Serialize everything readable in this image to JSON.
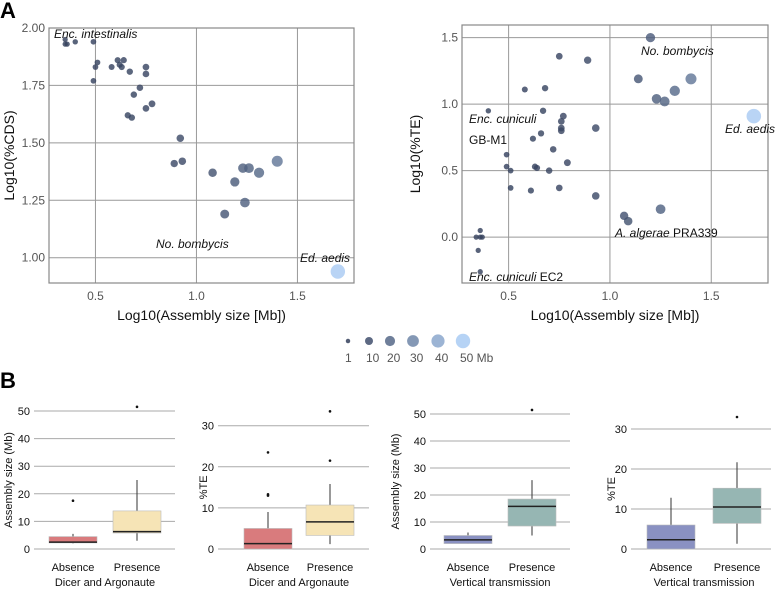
{
  "panel_labels": {
    "a": "A",
    "b": "B"
  },
  "colors": {
    "small_point": "#34405c",
    "large_point": "#a9cbf3",
    "dicer_absence": "#d97b7d",
    "dicer_presence": "#f6e4b6",
    "vertical_absence": "#8a91c2",
    "vertical_presence": "#96b6b3"
  },
  "chart_data": [
    {
      "type": "scatter",
      "xlabel": "Log10(Assembly size [Mb])",
      "ylabel": "Log10(%CDS)",
      "xlim": [
        0.27,
        1.78
      ],
      "ylim": [
        0.89,
        2.0
      ],
      "xticks": [
        "0.5",
        "1.0",
        "1.5"
      ],
      "xtick_values": [
        0.5,
        1.0,
        1.5
      ],
      "yticks": [
        "1.00",
        "1.25",
        "1.50",
        "1.75",
        "2.00"
      ],
      "ytick_values": [
        1.0,
        1.25,
        1.5,
        1.75,
        2.0
      ],
      "grid": true,
      "annotations": [
        {
          "italic": "Enc. intestinalis",
          "plain": ""
        },
        {
          "italic": "No. bombycis",
          "plain": ""
        },
        {
          "italic": "Ed. aedis",
          "plain": ""
        }
      ],
      "points": [
        [
          0.35,
          1.95
        ],
        [
          0.35,
          1.93
        ],
        [
          0.36,
          1.93
        ],
        [
          0.4,
          1.94
        ],
        [
          0.49,
          1.94
        ],
        [
          0.51,
          1.85
        ],
        [
          0.5,
          1.83
        ],
        [
          0.49,
          1.77
        ],
        [
          0.58,
          1.83
        ],
        [
          0.61,
          1.86
        ],
        [
          0.62,
          1.84
        ],
        [
          0.63,
          1.83
        ],
        [
          0.64,
          1.86
        ],
        [
          0.67,
          1.81
        ],
        [
          0.75,
          1.83
        ],
        [
          0.75,
          1.8
        ],
        [
          0.72,
          1.74
        ],
        [
          0.69,
          1.71
        ],
        [
          0.66,
          1.62
        ],
        [
          0.68,
          1.61
        ],
        [
          0.75,
          1.65
        ],
        [
          0.78,
          1.67
        ],
        [
          0.92,
          1.52
        ],
        [
          0.93,
          1.42
        ],
        [
          0.89,
          1.41
        ],
        [
          1.08,
          1.37
        ],
        [
          1.14,
          1.19
        ],
        [
          1.19,
          1.33
        ],
        [
          1.23,
          1.39
        ],
        [
          1.26,
          1.39
        ],
        [
          1.24,
          1.24
        ],
        [
          1.31,
          1.37
        ],
        [
          1.4,
          1.42
        ],
        [
          1.7,
          0.94
        ]
      ]
    },
    {
      "type": "scatter",
      "xlabel": "Log10(Assembly size [Mb])",
      "ylabel": "Log10(%TE)",
      "xlim": [
        0.27,
        1.78
      ],
      "ylim": [
        -0.345,
        1.595
      ],
      "xticks": [
        "0.5",
        "1.0",
        "1.5"
      ],
      "xtick_values": [
        0.5,
        1.0,
        1.5
      ],
      "yticks": [
        "0.0",
        "0.5",
        "1.0",
        "1.5"
      ],
      "ytick_values": [
        0.0,
        0.5,
        1.0,
        1.5
      ],
      "grid": true,
      "annotations": [
        {
          "italic": "No. bombycis",
          "plain": ""
        },
        {
          "italic": "Enc. cuniculi",
          "plain": ""
        },
        {
          "italic": "",
          "plain": "GB-M1"
        },
        {
          "italic": "Ed. aedis",
          "plain": ""
        },
        {
          "italic": "A. algerae",
          "plain": " PRA339"
        },
        {
          "italic": "Enc. cuniculi",
          "plain": " EC2"
        }
      ],
      "points": [
        [
          1.2,
          1.5
        ],
        [
          0.75,
          1.36
        ],
        [
          0.89,
          1.33
        ],
        [
          1.14,
          1.19
        ],
        [
          1.4,
          1.19
        ],
        [
          1.32,
          1.1
        ],
        [
          1.23,
          1.04
        ],
        [
          1.27,
          1.02
        ],
        [
          1.71,
          0.91
        ],
        [
          0.58,
          1.11
        ],
        [
          0.68,
          1.12
        ],
        [
          0.4,
          0.95
        ],
        [
          0.67,
          0.95
        ],
        [
          0.77,
          0.91
        ],
        [
          0.76,
          0.87
        ],
        [
          0.76,
          0.82
        ],
        [
          0.76,
          0.8
        ],
        [
          0.93,
          0.82
        ],
        [
          0.62,
          0.74
        ],
        [
          0.66,
          0.78
        ],
        [
          0.72,
          0.66
        ],
        [
          0.49,
          0.62
        ],
        [
          0.49,
          0.53
        ],
        [
          0.51,
          0.5
        ],
        [
          0.63,
          0.53
        ],
        [
          0.64,
          0.52
        ],
        [
          0.7,
          0.5
        ],
        [
          0.79,
          0.56
        ],
        [
          0.51,
          0.37
        ],
        [
          0.61,
          0.35
        ],
        [
          0.75,
          0.37
        ],
        [
          0.93,
          0.31
        ],
        [
          1.07,
          0.16
        ],
        [
          1.09,
          0.12
        ],
        [
          1.25,
          0.21
        ],
        [
          0.36,
          0.05
        ],
        [
          0.34,
          0.0
        ],
        [
          0.36,
          0.0
        ],
        [
          0.37,
          0.0
        ],
        [
          0.35,
          -0.1
        ],
        [
          0.36,
          -0.26
        ]
      ]
    },
    {
      "type": "legend",
      "title": "",
      "sizes": [
        1,
        10,
        20,
        30,
        40,
        50
      ],
      "labels": [
        "1",
        "10",
        "20",
        "30",
        "40",
        "50 Mb"
      ]
    },
    {
      "type": "box",
      "ylabel": "Assembly size (Mb)",
      "xlabel": "Dicer and Argonaute",
      "ylim": [
        0,
        50
      ],
      "yticks": [
        0,
        10,
        20,
        30,
        40,
        50
      ],
      "categories": [
        "Absence",
        "Presence"
      ],
      "boxes": [
        {
          "q1": 2.2,
          "median": 2.5,
          "q3": 4.5,
          "whisker_low": 2.0,
          "whisker_high": 5.5,
          "outliers": [
            17.5
          ],
          "color_key": "dicer_absence"
        },
        {
          "q1": 5.8,
          "median": 6.3,
          "q3": 13.8,
          "whisker_low": 3.0,
          "whisker_high": 25.0,
          "outliers": [
            51.5
          ],
          "color_key": "dicer_presence"
        }
      ]
    },
    {
      "type": "box",
      "ylabel": "%TE",
      "xlabel": "Dicer and Argonaute",
      "ylim": [
        0,
        30
      ],
      "yticks": [
        0,
        10,
        20,
        30
      ],
      "categories": [
        "Absence",
        "Presence"
      ],
      "boxes": [
        {
          "q1": 0.0,
          "median": 1.3,
          "q3": 5.0,
          "whisker_low": 0.0,
          "whisker_high": 9.0,
          "outliers": [
            13.0,
            13.3,
            23.5
          ],
          "color_key": "dicer_absence"
        },
        {
          "q1": 3.3,
          "median": 6.6,
          "q3": 10.7,
          "whisker_low": 1.2,
          "whisker_high": 15.8,
          "outliers": [
            21.5,
            33.5
          ],
          "color_key": "dicer_presence"
        }
      ]
    },
    {
      "type": "box",
      "ylabel": "Assembly size (Mb)",
      "xlabel": "Vertical transmission",
      "ylim": [
        0,
        50
      ],
      "yticks": [
        0,
        10,
        20,
        30,
        40,
        50
      ],
      "categories": [
        "Absence",
        "Presence"
      ],
      "boxes": [
        {
          "q1": 2.0,
          "median": 3.4,
          "q3": 5.0,
          "whisker_low": 2.0,
          "whisker_high": 6.1,
          "outliers": [],
          "color_key": "vertical_absence"
        },
        {
          "q1": 8.5,
          "median": 15.8,
          "q3": 18.5,
          "whisker_low": 5.0,
          "whisker_high": 25.5,
          "outliers": [
            51.5
          ],
          "color_key": "vertical_presence"
        }
      ]
    },
    {
      "type": "box",
      "ylabel": "%TE",
      "xlabel": "Vertical transmission",
      "ylim": [
        0,
        30
      ],
      "yticks": [
        0,
        10,
        20,
        30
      ],
      "categories": [
        "Absence",
        "Presence"
      ],
      "boxes": [
        {
          "q1": 0.0,
          "median": 2.3,
          "q3": 6.0,
          "whisker_low": 0.0,
          "whisker_high": 12.8,
          "outliers": [],
          "color_key": "vertical_absence"
        },
        {
          "q1": 6.4,
          "median": 10.5,
          "q3": 15.2,
          "whisker_low": 1.3,
          "whisker_high": 21.7,
          "outliers": [
            33.0
          ],
          "color_key": "vertical_presence"
        }
      ]
    }
  ]
}
